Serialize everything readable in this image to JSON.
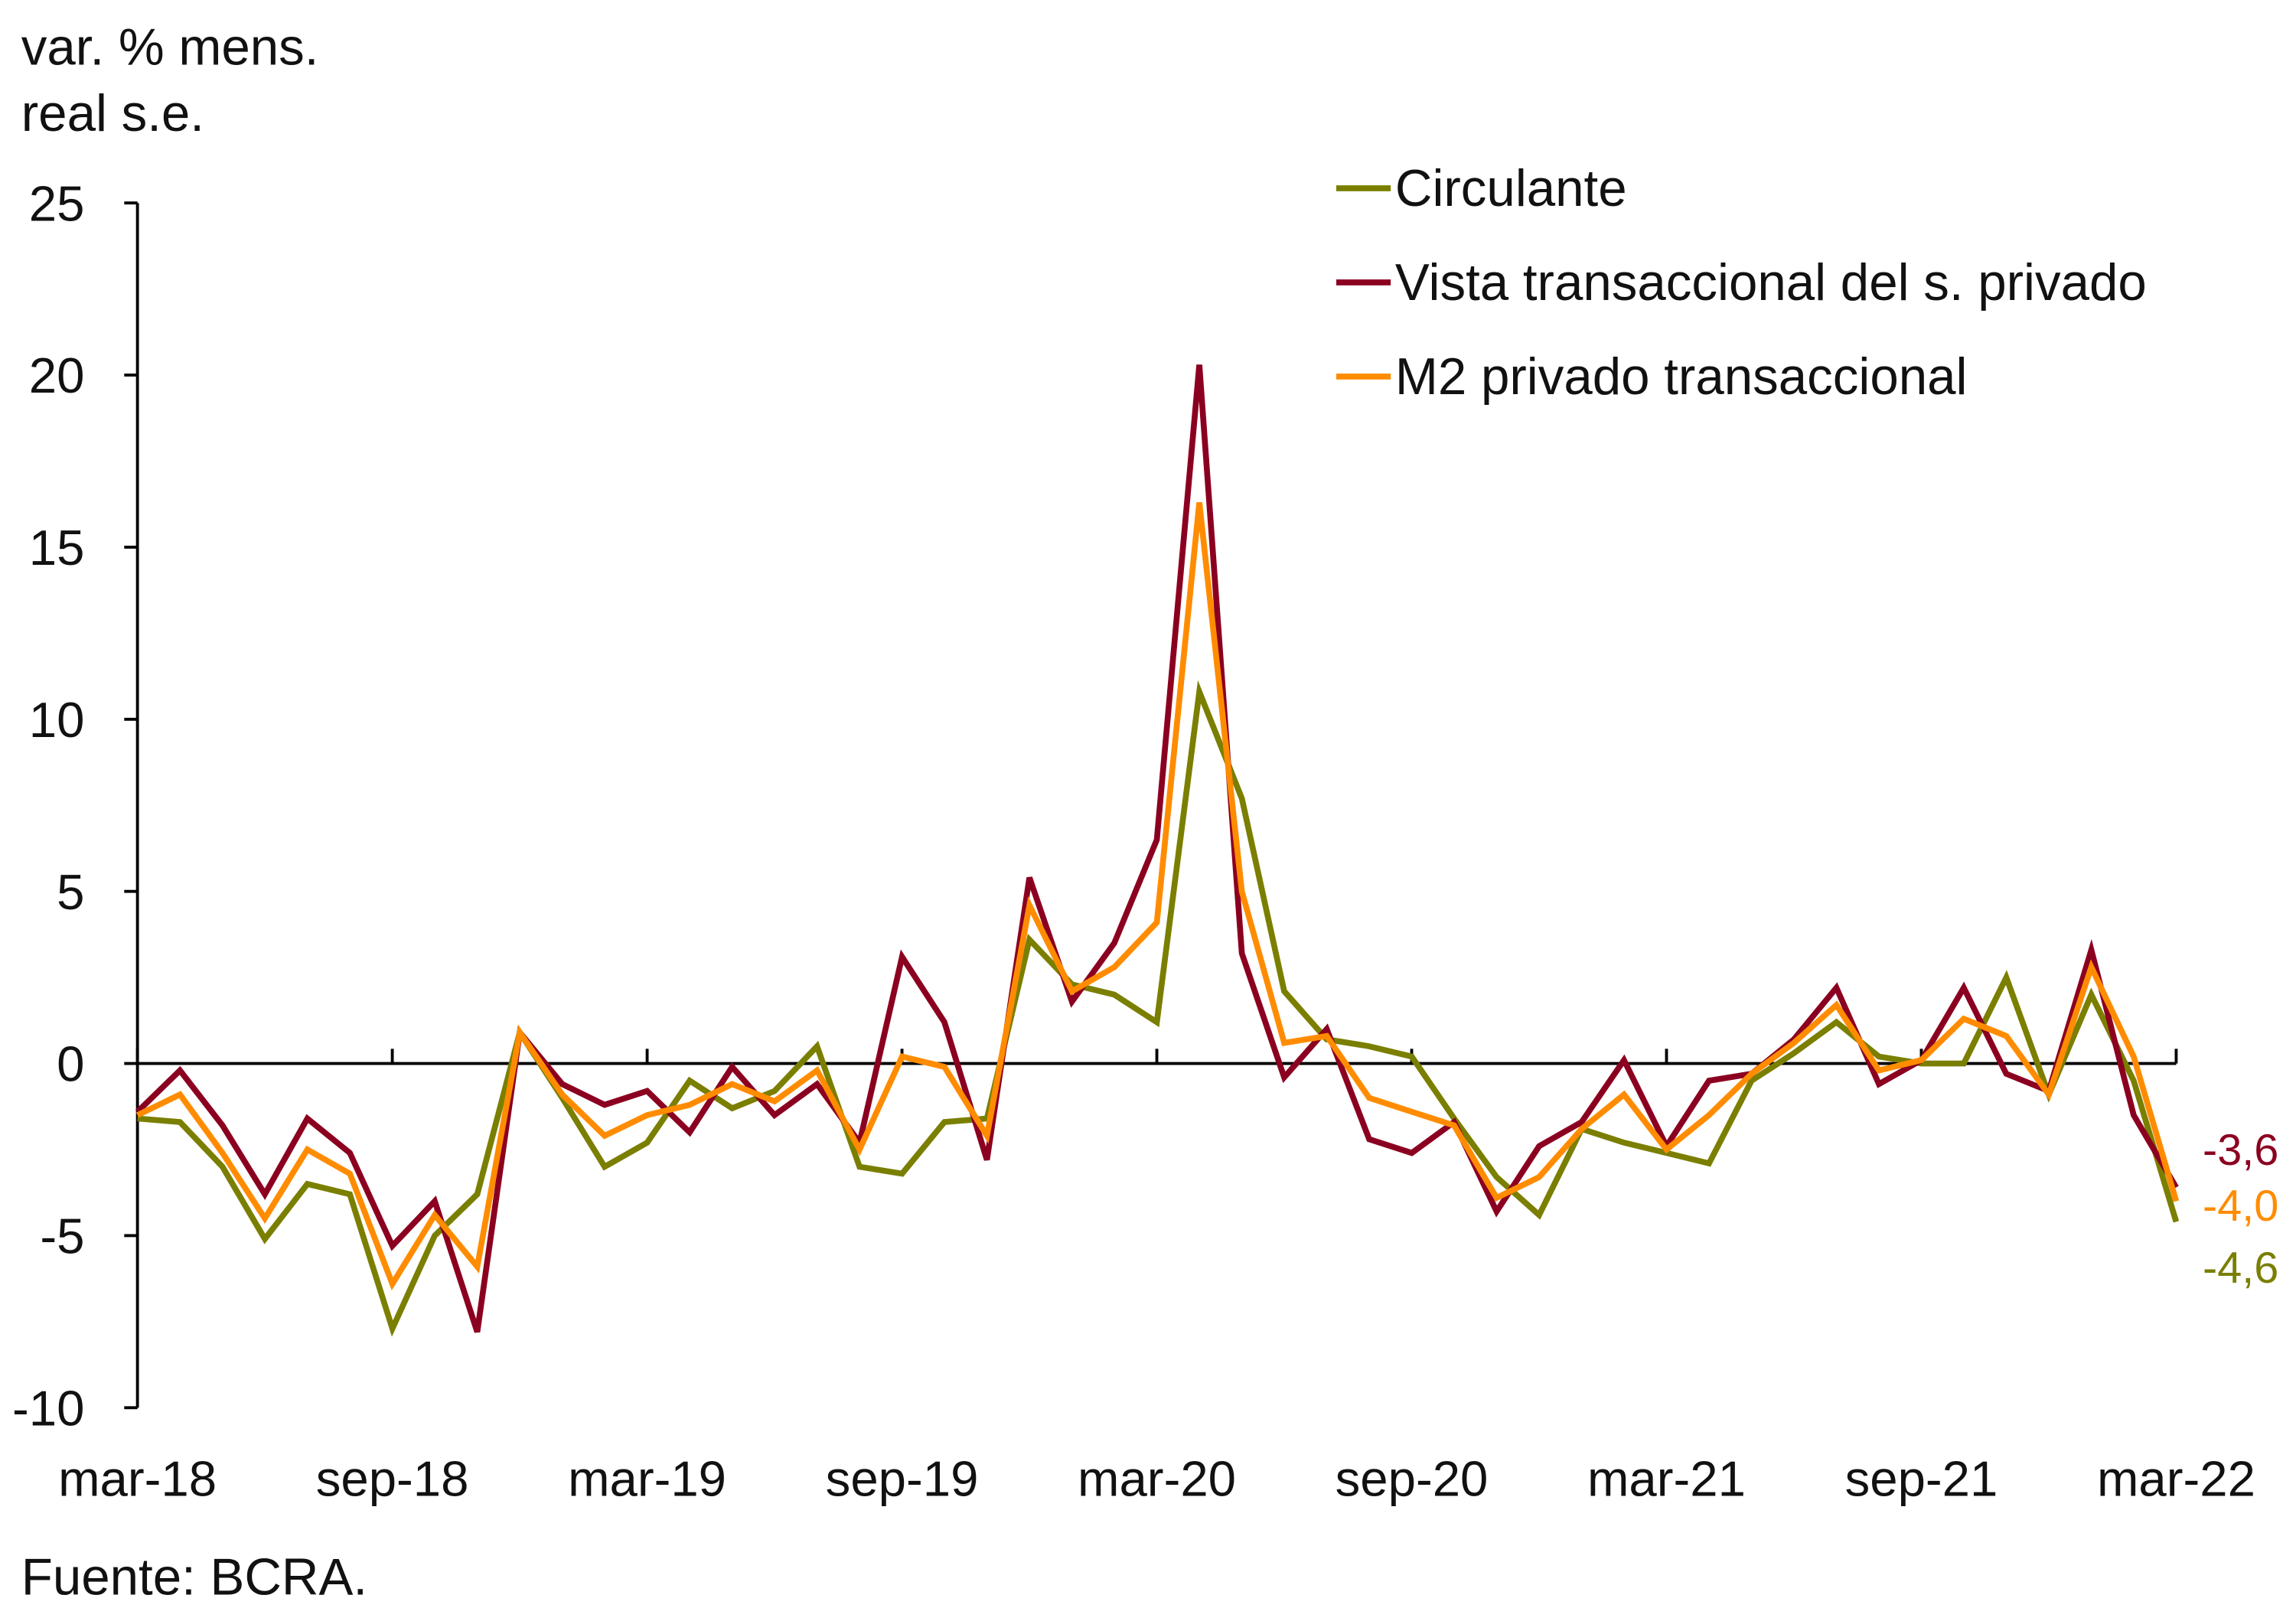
{
  "chart_data": {
    "type": "line",
    "ylabel_lines": [
      "var. % mens.",
      "real s.e."
    ],
    "source": "Fuente: BCRA.",
    "ylim": [
      -10,
      25
    ],
    "yticks": [
      "25",
      "20",
      "15",
      "10",
      "5",
      "0",
      "-5",
      "-10"
    ],
    "ytick_values": [
      25,
      20,
      15,
      10,
      5,
      0,
      -5,
      -10
    ],
    "xticks": [
      "mar-18",
      "sep-18",
      "mar-19",
      "sep-19",
      "mar-20",
      "sep-20",
      "mar-21",
      "sep-21",
      "mar-22"
    ],
    "x_start": "mar-18",
    "x_end": "mar-22",
    "frequency": "monthly",
    "grid": false,
    "legend_position": "top-right",
    "series": [
      {
        "name": "Circulante",
        "color": "#7a7f00",
        "end_label": "-4,6",
        "values": [
          -1.6,
          -1.7,
          -3.0,
          -5.1,
          -3.5,
          -3.8,
          -7.7,
          -5.0,
          -3.8,
          0.9,
          -1.0,
          -3.0,
          -2.3,
          -0.5,
          -1.3,
          -0.8,
          0.5,
          -3.0,
          -3.2,
          -1.7,
          -1.6,
          3.6,
          2.3,
          2.0,
          1.2,
          10.8,
          7.7,
          2.1,
          0.7,
          0.5,
          0.2,
          -1.6,
          -3.3,
          -4.4,
          -1.9,
          -2.3,
          -2.6,
          -2.9,
          -0.5,
          0.3,
          1.2,
          0.2,
          0.0,
          0.0,
          2.5,
          -0.9,
          2.0,
          -0.5,
          -4.6
        ]
      },
      {
        "name": "Vista transaccional del s. privado",
        "color": "#8b0020",
        "end_label": "-3,6",
        "values": [
          -1.4,
          -0.2,
          -1.8,
          -3.8,
          -1.6,
          -2.6,
          -5.3,
          -4.0,
          -7.8,
          0.9,
          -0.6,
          -1.2,
          -0.8,
          -2.0,
          -0.1,
          -1.5,
          -0.6,
          -2.3,
          3.1,
          1.2,
          -2.8,
          5.4,
          1.8,
          3.5,
          6.5,
          20.3,
          3.2,
          -0.4,
          1.0,
          -2.2,
          -2.6,
          -1.7,
          -4.3,
          -2.4,
          -1.7,
          0.1,
          -2.4,
          -0.5,
          -0.3,
          0.7,
          2.2,
          -0.6,
          0.1,
          2.2,
          -0.3,
          -0.8,
          3.3,
          -1.5,
          -3.6
        ]
      },
      {
        "name": "M2 privado transaccional",
        "color": "#ff8c00",
        "end_label": "-4,0",
        "values": [
          -1.5,
          -0.9,
          -2.6,
          -4.5,
          -2.5,
          -3.2,
          -6.4,
          -4.4,
          -5.9,
          0.9,
          -0.9,
          -2.1,
          -1.5,
          -1.2,
          -0.6,
          -1.1,
          -0.2,
          -2.5,
          0.2,
          -0.1,
          -2.1,
          4.6,
          2.1,
          2.8,
          4.1,
          16.3,
          5.0,
          0.6,
          0.8,
          -1.0,
          -1.4,
          -1.8,
          -3.9,
          -3.3,
          -1.9,
          -0.9,
          -2.5,
          -1.5,
          -0.3,
          0.6,
          1.7,
          -0.2,
          0.1,
          1.3,
          0.8,
          -0.9,
          2.8,
          0.2,
          -4.0
        ]
      }
    ]
  }
}
